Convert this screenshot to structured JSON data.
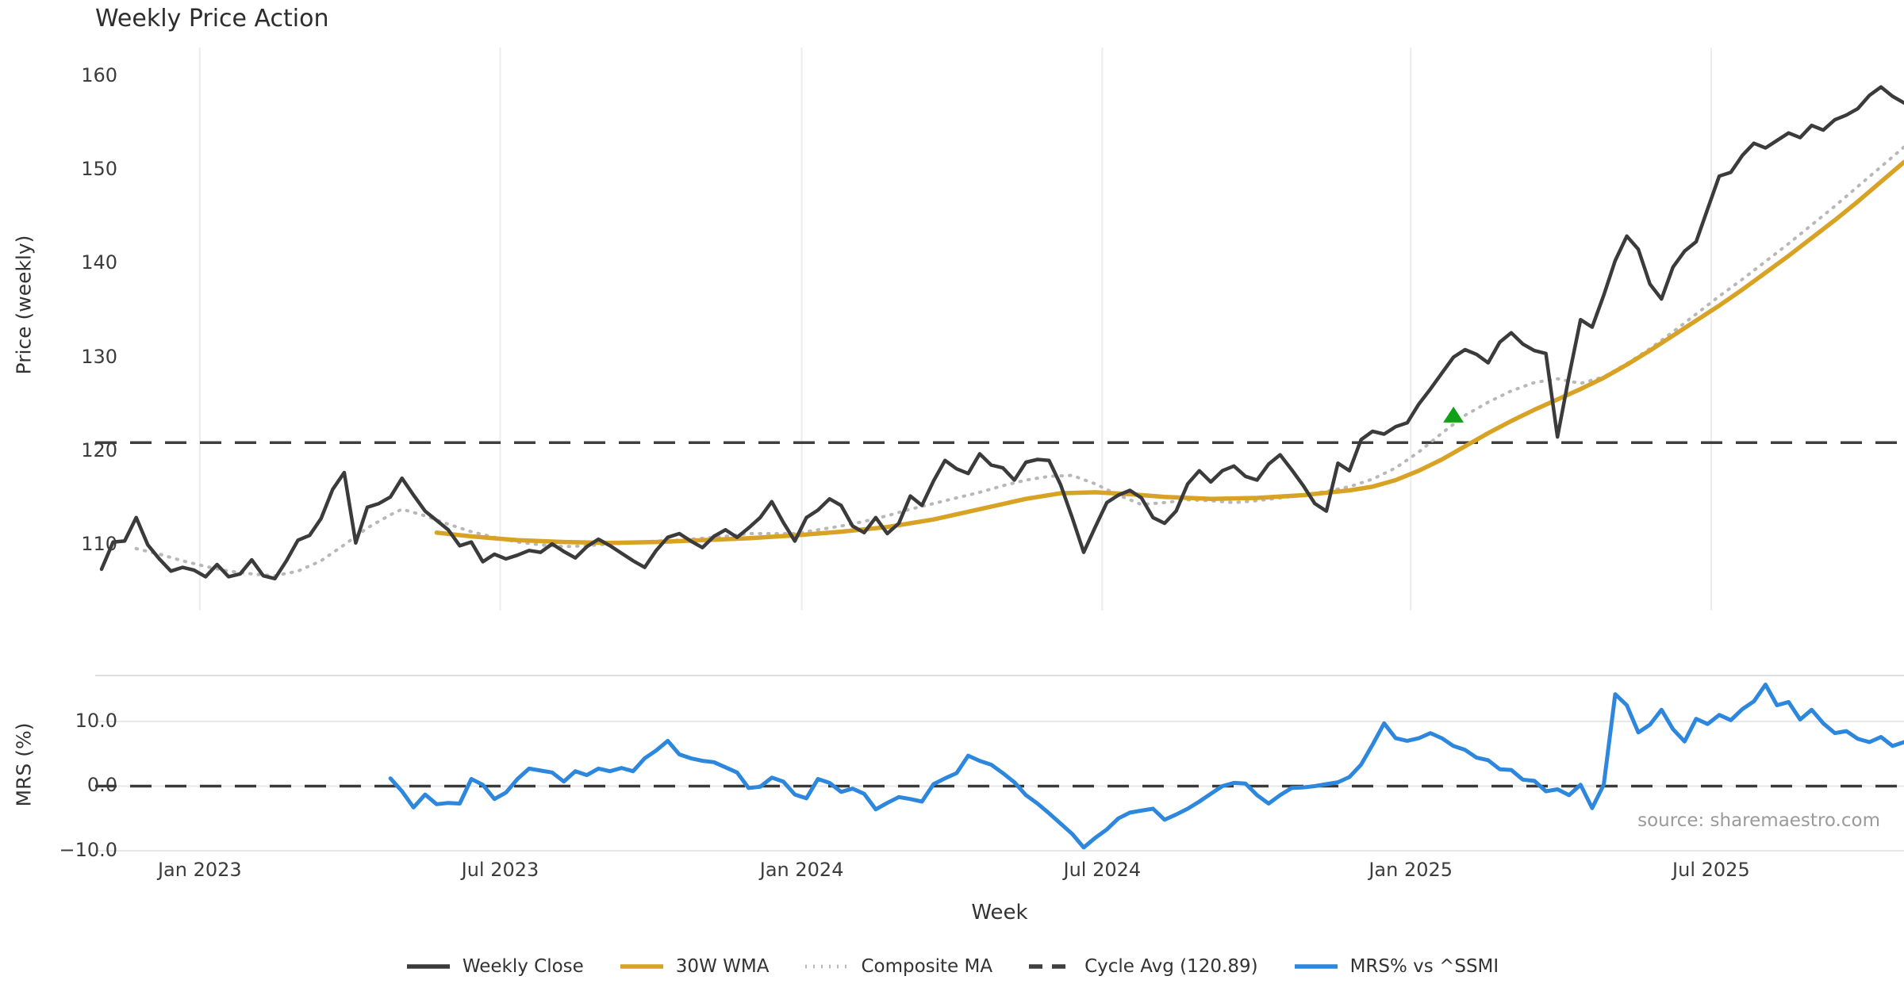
{
  "title": "Weekly Price Action",
  "xlabel": "Week",
  "source_note": "source: sharemaestro.com",
  "colors": {
    "weekly_close": "#3b3b3b",
    "wma_30w": "#d8a224",
    "composite_ma": "#b8b8b8",
    "cycle_avg": "#3f3f3f",
    "mrs": "#2d87dd",
    "marker_green": "#12a018",
    "grid": "#ececec",
    "spine": "#dedede"
  },
  "legend": [
    {
      "label": "Weekly Close",
      "color": "#3b3b3b",
      "swatch": "solid"
    },
    {
      "label": "30W WMA",
      "color": "#d8a224",
      "swatch": "solid"
    },
    {
      "label": "Composite MA",
      "color": "#b8b8b8",
      "swatch": "dotted"
    },
    {
      "label": "Cycle Avg (120.89)",
      "color": "#3f3f3f",
      "swatch": "dashed"
    },
    {
      "label": "MRS% vs ^SSMI",
      "color": "#2d87dd",
      "swatch": "solid"
    }
  ],
  "chart_data": [
    {
      "type": "line",
      "panel": "price",
      "title": "Weekly Price Action",
      "ylabel": "Price (weekly)",
      "xlabel": "Week",
      "ylim": [
        103,
        163
      ],
      "grid": "vertical-only",
      "yticks": [
        {
          "v": 110,
          "label": "110"
        },
        {
          "v": 120,
          "label": "120"
        },
        {
          "v": 130,
          "label": "130"
        },
        {
          "v": 140,
          "label": "140"
        },
        {
          "v": 150,
          "label": "150"
        },
        {
          "v": 160,
          "label": "160"
        }
      ],
      "xticks": [
        {
          "week": 8.5,
          "label": "Jan 2023"
        },
        {
          "week": 34.5,
          "label": "Jul 2023"
        },
        {
          "week": 60.6,
          "label": "Jan 2024"
        },
        {
          "week": 86.6,
          "label": "Jul 2024"
        },
        {
          "week": 113.3,
          "label": "Jan 2025"
        },
        {
          "week": 139.3,
          "label": "Jul 2025"
        }
      ],
      "reference_line": {
        "name": "Cycle Avg",
        "value": 120.89,
        "style": "dashed",
        "color": "#3f3f3f"
      },
      "marker": {
        "shape": "triangle-up",
        "color": "#12a018",
        "week": 117,
        "price": 123.8
      },
      "series": [
        {
          "name": "Weekly Close",
          "color": "#3b3b3b",
          "style": "solid",
          "width": 4.5,
          "week_start": 0,
          "week_step": 1,
          "values": [
            107.4,
            110.3,
            110.4,
            112.9,
            110.0,
            108.5,
            107.2,
            107.6,
            107.3,
            106.6,
            107.9,
            106.6,
            106.9,
            108.4,
            106.7,
            106.4,
            108.3,
            110.5,
            111.0,
            112.8,
            115.9,
            117.7,
            110.2,
            114.0,
            114.4,
            115.1,
            117.1,
            115.3,
            113.6,
            112.6,
            111.6,
            109.9,
            110.3,
            108.2,
            109.0,
            108.5,
            108.9,
            109.4,
            109.2,
            110.1,
            109.3,
            108.6,
            109.8,
            110.6,
            109.9,
            109.1,
            108.3,
            107.6,
            109.4,
            110.8,
            111.2,
            110.4,
            109.7,
            110.9,
            111.6,
            110.8,
            111.8,
            112.9,
            114.6,
            112.4,
            110.4,
            112.9,
            113.7,
            114.9,
            114.2,
            112.0,
            111.3,
            112.9,
            111.2,
            112.3,
            115.2,
            114.2,
            116.8,
            119.0,
            118.1,
            117.6,
            119.7,
            118.5,
            118.2,
            116.9,
            118.8,
            119.1,
            119.0,
            116.4,
            112.9,
            109.2,
            111.9,
            114.5,
            115.3,
            115.8,
            115.0,
            112.9,
            112.3,
            113.6,
            116.5,
            117.9,
            116.7,
            117.9,
            118.4,
            117.3,
            116.9,
            118.6,
            119.6,
            118.0,
            116.3,
            114.4,
            113.6,
            118.7,
            117.9,
            121.2,
            122.1,
            121.8,
            122.6,
            123.0,
            125.0,
            126.6,
            128.3,
            130.0,
            130.8,
            130.3,
            129.4,
            131.6,
            132.6,
            131.4,
            130.7,
            130.4,
            121.5,
            128.0,
            134.0,
            133.2,
            136.6,
            140.3,
            142.9,
            141.5,
            137.8,
            136.2,
            139.6,
            141.3,
            142.3,
            145.8,
            149.3,
            149.7,
            151.5,
            152.8,
            152.3,
            153.1,
            153.9,
            153.4,
            154.7,
            154.2,
            155.3,
            155.8,
            156.5,
            157.9,
            158.8,
            157.8,
            157.1
          ]
        },
        {
          "name": "30W WMA",
          "color": "#d8a224",
          "style": "solid",
          "width": 5.5,
          "points": [
            [
              29,
              111.3
            ],
            [
              32,
              110.9
            ],
            [
              36,
              110.5
            ],
            [
              40,
              110.3
            ],
            [
              44,
              110.2
            ],
            [
              48,
              110.3
            ],
            [
              52,
              110.5
            ],
            [
              56,
              110.7
            ],
            [
              60,
              111.0
            ],
            [
              64,
              111.4
            ],
            [
              68,
              111.9
            ],
            [
              72,
              112.7
            ],
            [
              76,
              113.8
            ],
            [
              80,
              114.9
            ],
            [
              83,
              115.5
            ],
            [
              86,
              115.6
            ],
            [
              89,
              115.4
            ],
            [
              92,
              115.1
            ],
            [
              96,
              114.9
            ],
            [
              100,
              115.0
            ],
            [
              104,
              115.3
            ],
            [
              108,
              115.8
            ],
            [
              110,
              116.2
            ],
            [
              112,
              116.9
            ],
            [
              114,
              117.9
            ],
            [
              116,
              119.1
            ],
            [
              118,
              120.5
            ],
            [
              120,
              121.9
            ],
            [
              122,
              123.2
            ],
            [
              124,
              124.4
            ],
            [
              126,
              125.5
            ],
            [
              128,
              126.6
            ],
            [
              130,
              127.8
            ],
            [
              132,
              129.2
            ],
            [
              134,
              130.7
            ],
            [
              136,
              132.3
            ],
            [
              138,
              133.9
            ],
            [
              140,
              135.5
            ],
            [
              142,
              137.2
            ],
            [
              144,
              139.0
            ],
            [
              146,
              140.8
            ],
            [
              148,
              142.7
            ],
            [
              150,
              144.6
            ],
            [
              152,
              146.6
            ],
            [
              154,
              148.7
            ],
            [
              156,
              150.8
            ]
          ]
        },
        {
          "name": "Composite MA",
          "color": "#b8b8b8",
          "style": "dotted",
          "width": 4,
          "points": [
            [
              3,
              109.6
            ],
            [
              5,
              109.0
            ],
            [
              7,
              108.3
            ],
            [
              9,
              107.7
            ],
            [
              11,
              107.2
            ],
            [
              13,
              106.9
            ],
            [
              15,
              106.7
            ],
            [
              17,
              107.2
            ],
            [
              19,
              108.3
            ],
            [
              21,
              110.0
            ],
            [
              23,
              111.8
            ],
            [
              25,
              113.2
            ],
            [
              26,
              113.8
            ],
            [
              28,
              113.1
            ],
            [
              30,
              112.2
            ],
            [
              32,
              111.4
            ],
            [
              34,
              110.8
            ],
            [
              36,
              110.3
            ],
            [
              38,
              110.0
            ],
            [
              40,
              109.8
            ],
            [
              42,
              109.9
            ],
            [
              44,
              110.1
            ],
            [
              46,
              110.2
            ],
            [
              48,
              110.4
            ],
            [
              50,
              110.5
            ],
            [
              52,
              110.7
            ],
            [
              54,
              110.9
            ],
            [
              56,
              111.2
            ],
            [
              58,
              111.2
            ],
            [
              60,
              111.2
            ],
            [
              62,
              111.6
            ],
            [
              64,
              112.0
            ],
            [
              66,
              112.5
            ],
            [
              68,
              113.1
            ],
            [
              70,
              113.8
            ],
            [
              72,
              114.4
            ],
            [
              74,
              115.0
            ],
            [
              76,
              115.6
            ],
            [
              78,
              116.3
            ],
            [
              80,
              116.9
            ],
            [
              82,
              117.3
            ],
            [
              84,
              117.4
            ],
            [
              86,
              116.5
            ],
            [
              88,
              115.3
            ],
            [
              90,
              114.3
            ],
            [
              92,
              114.5
            ],
            [
              94,
              114.8
            ],
            [
              96,
              114.7
            ],
            [
              98,
              114.5
            ],
            [
              100,
              114.7
            ],
            [
              102,
              115.0
            ],
            [
              104,
              115.3
            ],
            [
              106,
              115.7
            ],
            [
              108,
              116.2
            ],
            [
              110,
              117.0
            ],
            [
              112,
              118.2
            ],
            [
              114,
              119.9
            ],
            [
              116,
              121.9
            ],
            [
              118,
              123.8
            ],
            [
              120,
              125.2
            ],
            [
              122,
              126.4
            ],
            [
              124,
              127.3
            ],
            [
              126,
              127.7
            ],
            [
              128,
              127.2
            ],
            [
              130,
              127.9
            ],
            [
              132,
              129.3
            ],
            [
              134,
              130.9
            ],
            [
              136,
              132.7
            ],
            [
              138,
              134.6
            ],
            [
              140,
              136.5
            ],
            [
              142,
              138.3
            ],
            [
              144,
              140.2
            ],
            [
              146,
              142.1
            ],
            [
              148,
              144.1
            ],
            [
              150,
              146.1
            ],
            [
              152,
              148.2
            ],
            [
              154,
              150.3
            ],
            [
              156,
              152.4
            ]
          ]
        }
      ]
    },
    {
      "type": "line",
      "panel": "mrs",
      "ylabel": "MRS (%)",
      "ylim": [
        -10,
        17.1
      ],
      "grid": "horizontal-only",
      "yticks": [
        {
          "v": 10.0,
          "label": "10.0"
        },
        {
          "v": 0.0,
          "label": "0.0"
        },
        {
          "v": -10.0,
          "label": "−10.0"
        }
      ],
      "reference_line": {
        "name": "Zero",
        "value": 0,
        "style": "dashed",
        "color": "#3a3a3a"
      },
      "series": [
        {
          "name": "MRS% vs ^SSMI",
          "color": "#2d87dd",
          "style": "solid",
          "width": 5,
          "week_start": 25,
          "week_step": 1,
          "values": [
            1.2,
            -0.8,
            -3.3,
            -1.3,
            -2.8,
            -2.6,
            -2.7,
            1.1,
            0.2,
            -2.0,
            -1.0,
            1.1,
            2.7,
            2.4,
            2.1,
            0.7,
            2.3,
            1.7,
            2.7,
            2.3,
            2.8,
            2.3,
            4.3,
            5.5,
            7.0,
            4.9,
            4.3,
            3.9,
            3.7,
            2.9,
            2.1,
            -0.3,
            -0.1,
            1.3,
            0.7,
            -1.3,
            -1.9,
            1.1,
            0.5,
            -0.9,
            -0.4,
            -1.2,
            -3.6,
            -2.6,
            -1.7,
            -2.0,
            -2.4,
            0.3,
            1.2,
            2.0,
            4.7,
            3.9,
            3.3,
            2.0,
            0.6,
            -1.4,
            -2.7,
            -4.2,
            -5.8,
            -7.4,
            -9.5,
            -8.0,
            -6.7,
            -5.0,
            -4.1,
            -3.8,
            -3.5,
            -5.2,
            -4.4,
            -3.5,
            -2.4,
            -1.2,
            0.0,
            0.5,
            0.4,
            -1.4,
            -2.7,
            -1.4,
            -0.3,
            -0.2,
            0.0,
            0.3,
            0.6,
            1.4,
            3.3,
            6.4,
            9.7,
            7.4,
            7.0,
            7.4,
            8.2,
            7.4,
            6.2,
            5.6,
            4.4,
            4.0,
            2.6,
            2.5,
            1.0,
            0.8,
            -0.8,
            -0.5,
            -1.4,
            0.2,
            -3.4,
            0.2,
            14.2,
            12.5,
            8.3,
            9.5,
            11.8,
            8.8,
            6.9,
            10.4,
            9.6,
            11.0,
            10.2,
            11.9,
            13.1,
            15.7,
            12.5,
            13.0,
            10.3,
            11.8,
            9.7,
            8.2,
            8.5,
            7.3,
            6.8,
            7.6,
            6.2,
            6.8
          ]
        }
      ]
    }
  ]
}
